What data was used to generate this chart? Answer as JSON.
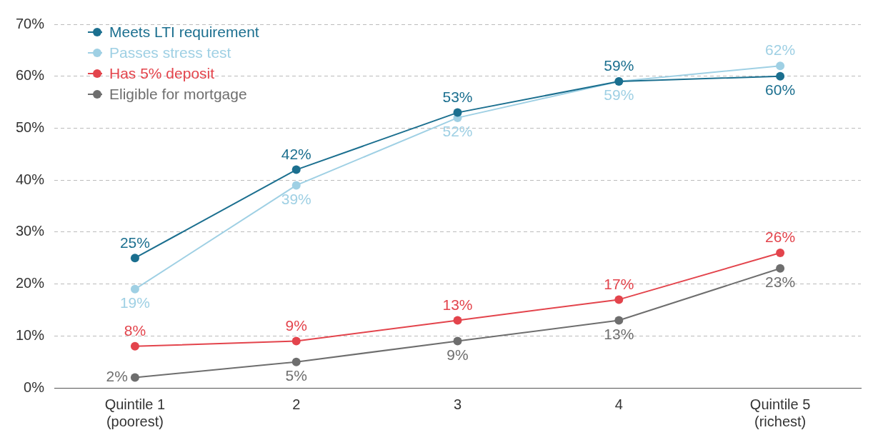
{
  "chart_data": {
    "type": "line",
    "categories": [
      "Quintile 1\n(poorest)",
      "2",
      "3",
      "4",
      "Quintile 5\n(richest)"
    ],
    "series": [
      {
        "name": "Meets LTI requirement",
        "color": "#1b6f8f",
        "values": [
          25,
          42,
          53,
          59,
          60
        ],
        "value_labels": [
          "25%",
          "42%",
          "53%",
          "59%",
          "60%"
        ]
      },
      {
        "name": "Passes stress test",
        "color": "#9fd0e4",
        "values": [
          19,
          39,
          52,
          59,
          62
        ],
        "value_labels": [
          "19%",
          "39%",
          "52%",
          "59%",
          "62%"
        ]
      },
      {
        "name": "Has 5% deposit",
        "color": "#e3444c",
        "values": [
          8,
          9,
          13,
          17,
          26
        ],
        "value_labels": [
          "8%",
          "9%",
          "13%",
          "17%",
          "26%"
        ]
      },
      {
        "name": "Eligible for mortgage",
        "color": "#6e6e6e",
        "values": [
          2,
          5,
          9,
          13,
          23
        ],
        "value_labels": [
          "2%",
          "5%",
          "9%",
          "13%",
          "23%"
        ]
      }
    ],
    "ylim": [
      0,
      70
    ],
    "yticks": [
      {
        "value": 0,
        "label": "0%"
      },
      {
        "value": 10,
        "label": "10%"
      },
      {
        "value": 20,
        "label": "20%"
      },
      {
        "value": 30,
        "label": "30%"
      },
      {
        "value": 40,
        "label": "40%"
      },
      {
        "value": 50,
        "label": "50%"
      },
      {
        "value": 60,
        "label": "60%"
      },
      {
        "value": 70,
        "label": "70%"
      }
    ],
    "grid": "y",
    "legend": "top left",
    "marker": "circle",
    "line_style": "solid"
  }
}
